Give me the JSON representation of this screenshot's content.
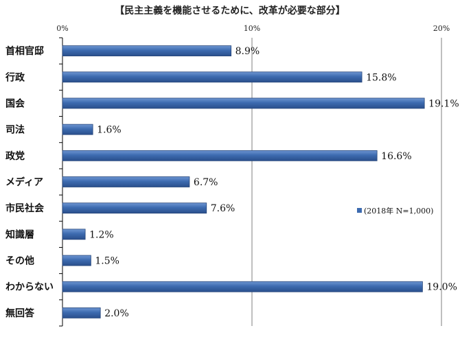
{
  "chart_data": {
    "type": "bar",
    "orientation": "horizontal",
    "title": "【民主主義を機能させるために、改革が必要な部分】",
    "categories": [
      "首相官邸",
      "行政",
      "国会",
      "司法",
      "政党",
      "メディア",
      "市民社会",
      "知識層",
      "その他",
      "わからない",
      "無回答"
    ],
    "series": [
      {
        "name": "(2018年 N=1,000)",
        "values": [
          8.9,
          15.8,
          19.1,
          1.6,
          16.6,
          6.7,
          7.6,
          1.2,
          1.5,
          19.0,
          2.0
        ],
        "value_labels": [
          "8.9%",
          "15.8%",
          "19.1%",
          "1.6%",
          "16.6%",
          "6.7%",
          "7.6%",
          "1.2%",
          "1.5%",
          "19.0%",
          "2.0%"
        ]
      }
    ],
    "xlim": [
      0,
      20
    ],
    "xticks": [
      0,
      10,
      20
    ],
    "xtick_labels": [
      "0%",
      "10%",
      "20%"
    ],
    "xaxis_position": "top",
    "grid": "vertical",
    "legend_position": "right-middle",
    "xlabel": "",
    "ylabel": "",
    "colors": {
      "bar": "#3d6bb0",
      "bar_edge": "#27467a",
      "grid": "#7f7f7f",
      "axis": "#000000"
    }
  }
}
